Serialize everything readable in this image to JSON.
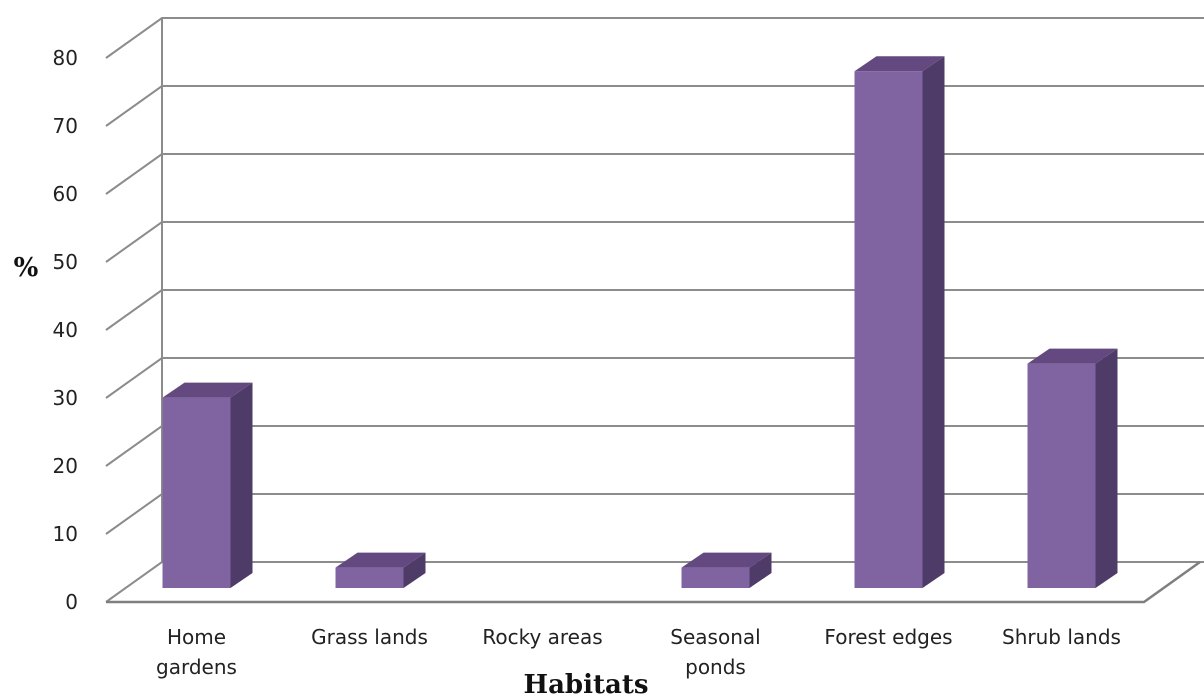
{
  "chart_data": {
    "type": "bar",
    "categories": [
      [
        "Home",
        "gardens"
      ],
      [
        "Grass lands"
      ],
      [
        "Rocky areas"
      ],
      [
        "Seasonal",
        "ponds"
      ],
      [
        "Forest edges"
      ],
      [
        "Shrub lands"
      ]
    ],
    "values": [
      28,
      3,
      0,
      3,
      76,
      33
    ],
    "xlabel": "Habitats",
    "ylabel": "%",
    "ylim": [
      0,
      80
    ],
    "yticks": [
      0,
      10,
      20,
      30,
      40,
      50,
      60,
      70,
      80
    ],
    "style": "3d-column",
    "grid": true,
    "colors": {
      "front": "#8064A2",
      "side": "#4E3B67",
      "top": "#63497F",
      "grid": "#8C8C8C",
      "axis": "#7F7F7F"
    }
  }
}
